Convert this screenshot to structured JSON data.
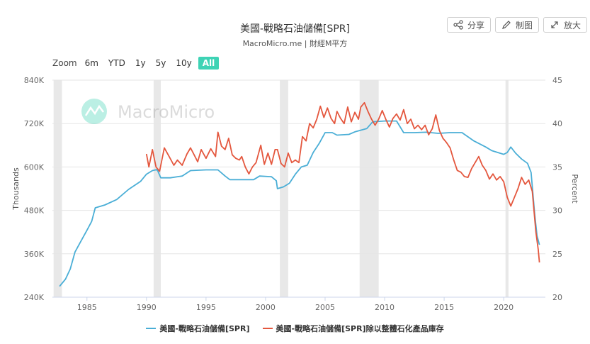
{
  "header": {
    "title": "美國-戰略石油儲備[SPR]",
    "subtitle": "MacroMicro.me | 財經M平方",
    "share_label": "分享",
    "draw_label": "制图",
    "expand_label": "放大"
  },
  "zoom": {
    "label": "Zoom",
    "options": [
      "6m",
      "YTD",
      "1y",
      "5y",
      "10y",
      "All"
    ],
    "active": "All"
  },
  "watermark": "MacroMicro",
  "colors": {
    "spr": "#4aaed6",
    "ratio": "#e4573e",
    "shade": "#e8e8e8",
    "grid": "#e6e6e6",
    "active_zoom": "#3ed3b5"
  },
  "chart_data": {
    "type": "line",
    "x_ticks": [
      "1985",
      "1990",
      "1995",
      "2000",
      "2005",
      "2010",
      "2015",
      "2020"
    ],
    "xlim": [
      1982.1,
      2023.5
    ],
    "y_left": {
      "label": "Thousands",
      "ticks": [
        "240K",
        "360K",
        "480K",
        "600K",
        "720K",
        "840K"
      ],
      "ylim": [
        240,
        840
      ]
    },
    "y_right": {
      "label": "Percent",
      "ticks": [
        "20",
        "25",
        "30",
        "35",
        "40",
        "45"
      ],
      "ylim": [
        20,
        45
      ]
    },
    "shaded_periods": [
      [
        1982.2,
        1982.9
      ],
      [
        1990.6,
        1991.2
      ],
      [
        2001.2,
        2001.9
      ],
      [
        2007.9,
        2009.5
      ],
      [
        2020.15,
        2020.4
      ]
    ],
    "grid": true,
    "legend_position": "bottom",
    "series": [
      {
        "name": "美國-戰略石油儲備[SPR]",
        "axis": "left",
        "points": [
          [
            1982.7,
            270
          ],
          [
            1983.2,
            290
          ],
          [
            1983.6,
            318
          ],
          [
            1984.0,
            365
          ],
          [
            1984.5,
            395
          ],
          [
            1985.0,
            425
          ],
          [
            1985.4,
            450
          ],
          [
            1985.7,
            487
          ],
          [
            1986.5,
            495
          ],
          [
            1987.5,
            510
          ],
          [
            1988.5,
            538
          ],
          [
            1989.5,
            560
          ],
          [
            1990.0,
            580
          ],
          [
            1990.5,
            590
          ],
          [
            1990.9,
            593
          ],
          [
            1991.2,
            570
          ],
          [
            1992.0,
            570
          ],
          [
            1993.0,
            575
          ],
          [
            1993.7,
            590
          ],
          [
            1995.0,
            592
          ],
          [
            1996.0,
            592
          ],
          [
            1996.6,
            575
          ],
          [
            1997.0,
            565
          ],
          [
            1998.0,
            565
          ],
          [
            1999.0,
            565
          ],
          [
            1999.5,
            575
          ],
          [
            2000.5,
            573
          ],
          [
            2000.9,
            562
          ],
          [
            2001.0,
            540
          ],
          [
            2001.5,
            545
          ],
          [
            2002.0,
            555
          ],
          [
            2002.5,
            580
          ],
          [
            2003.0,
            600
          ],
          [
            2003.5,
            605
          ],
          [
            2004.0,
            640
          ],
          [
            2004.5,
            665
          ],
          [
            2005.0,
            695
          ],
          [
            2005.6,
            695
          ],
          [
            2006.0,
            688
          ],
          [
            2007.0,
            690
          ],
          [
            2007.5,
            697
          ],
          [
            2008.5,
            706
          ],
          [
            2009.0,
            725
          ],
          [
            2010.0,
            727
          ],
          [
            2011.0,
            727
          ],
          [
            2011.6,
            695
          ],
          [
            2012.5,
            695
          ],
          [
            2013.5,
            696
          ],
          [
            2014.5,
            693
          ],
          [
            2015.5,
            695
          ],
          [
            2016.5,
            695
          ],
          [
            2017.5,
            672
          ],
          [
            2018.5,
            655
          ],
          [
            2019.0,
            645
          ],
          [
            2019.5,
            640
          ],
          [
            2020.0,
            635
          ],
          [
            2020.3,
            640
          ],
          [
            2020.6,
            655
          ],
          [
            2021.0,
            638
          ],
          [
            2021.5,
            622
          ],
          [
            2022.0,
            610
          ],
          [
            2022.3,
            585
          ],
          [
            2022.6,
            470
          ],
          [
            2022.8,
            410
          ],
          [
            2023.0,
            385
          ]
        ]
      },
      {
        "name": "美國-戰略石油儲備[SPR]除以整體石化產品庫存",
        "axis": "right",
        "points": [
          [
            1990.0,
            36.5
          ],
          [
            1990.2,
            35.0
          ],
          [
            1990.5,
            37.0
          ],
          [
            1990.8,
            35.0
          ],
          [
            1991.1,
            34.5
          ],
          [
            1991.5,
            37.2
          ],
          [
            1991.9,
            36.2
          ],
          [
            1992.3,
            35.2
          ],
          [
            1992.6,
            35.8
          ],
          [
            1993.0,
            35.2
          ],
          [
            1993.4,
            36.5
          ],
          [
            1993.7,
            37.2
          ],
          [
            1994.0,
            36.4
          ],
          [
            1994.3,
            35.6
          ],
          [
            1994.6,
            37.0
          ],
          [
            1995.0,
            36.0
          ],
          [
            1995.4,
            37.1
          ],
          [
            1995.8,
            36.2
          ],
          [
            1996.0,
            39.0
          ],
          [
            1996.3,
            37.4
          ],
          [
            1996.6,
            37.0
          ],
          [
            1996.9,
            38.3
          ],
          [
            1997.2,
            36.4
          ],
          [
            1997.5,
            36.0
          ],
          [
            1997.8,
            35.8
          ],
          [
            1998.0,
            36.2
          ],
          [
            1998.3,
            35.0
          ],
          [
            1998.6,
            34.2
          ],
          [
            1998.9,
            35.0
          ],
          [
            1999.2,
            35.5
          ],
          [
            1999.6,
            37.5
          ],
          [
            1999.9,
            35.3
          ],
          [
            2000.2,
            36.6
          ],
          [
            2000.5,
            35.3
          ],
          [
            2000.8,
            37.0
          ],
          [
            2001.0,
            37.0
          ],
          [
            2001.3,
            35.4
          ],
          [
            2001.6,
            35.0
          ],
          [
            2001.9,
            36.6
          ],
          [
            2002.2,
            35.5
          ],
          [
            2002.5,
            35.8
          ],
          [
            2002.8,
            35.5
          ],
          [
            2003.1,
            38.5
          ],
          [
            2003.4,
            38.0
          ],
          [
            2003.7,
            40.0
          ],
          [
            2004.0,
            39.5
          ],
          [
            2004.3,
            40.5
          ],
          [
            2004.6,
            42.0
          ],
          [
            2004.9,
            40.7
          ],
          [
            2005.2,
            41.8
          ],
          [
            2005.5,
            40.6
          ],
          [
            2005.8,
            40.0
          ],
          [
            2006.0,
            41.4
          ],
          [
            2006.3,
            40.6
          ],
          [
            2006.6,
            40.0
          ],
          [
            2006.9,
            41.9
          ],
          [
            2007.2,
            40.2
          ],
          [
            2007.5,
            41.3
          ],
          [
            2007.8,
            40.5
          ],
          [
            2008.0,
            41.9
          ],
          [
            2008.3,
            42.4
          ],
          [
            2008.6,
            41.4
          ],
          [
            2008.9,
            40.5
          ],
          [
            2009.2,
            39.8
          ],
          [
            2009.5,
            40.5
          ],
          [
            2009.8,
            41.5
          ],
          [
            2010.1,
            40.5
          ],
          [
            2010.4,
            39.6
          ],
          [
            2010.7,
            40.6
          ],
          [
            2011.0,
            41.1
          ],
          [
            2011.3,
            40.4
          ],
          [
            2011.6,
            41.6
          ],
          [
            2011.9,
            40.0
          ],
          [
            2012.2,
            40.5
          ],
          [
            2012.5,
            39.4
          ],
          [
            2012.8,
            39.8
          ],
          [
            2013.1,
            39.3
          ],
          [
            2013.4,
            39.8
          ],
          [
            2013.7,
            38.7
          ],
          [
            2014.0,
            39.4
          ],
          [
            2014.3,
            41.0
          ],
          [
            2014.6,
            39.2
          ],
          [
            2014.9,
            38.3
          ],
          [
            2015.2,
            37.8
          ],
          [
            2015.5,
            37.2
          ],
          [
            2015.8,
            35.8
          ],
          [
            2016.1,
            34.6
          ],
          [
            2016.4,
            34.4
          ],
          [
            2016.7,
            33.9
          ],
          [
            2017.0,
            33.8
          ],
          [
            2017.3,
            34.8
          ],
          [
            2017.6,
            35.5
          ],
          [
            2017.9,
            36.2
          ],
          [
            2018.2,
            35.2
          ],
          [
            2018.5,
            34.6
          ],
          [
            2018.8,
            33.6
          ],
          [
            2019.1,
            34.2
          ],
          [
            2019.4,
            33.5
          ],
          [
            2019.7,
            33.9
          ],
          [
            2020.0,
            33.3
          ],
          [
            2020.3,
            31.5
          ],
          [
            2020.6,
            30.5
          ],
          [
            2020.9,
            31.5
          ],
          [
            2021.2,
            32.5
          ],
          [
            2021.5,
            33.8
          ],
          [
            2021.8,
            33.0
          ],
          [
            2022.1,
            33.5
          ],
          [
            2022.4,
            32.2
          ],
          [
            2022.7,
            27.5
          ],
          [
            2022.9,
            25.5
          ],
          [
            2023.0,
            24.0
          ]
        ]
      }
    ]
  }
}
